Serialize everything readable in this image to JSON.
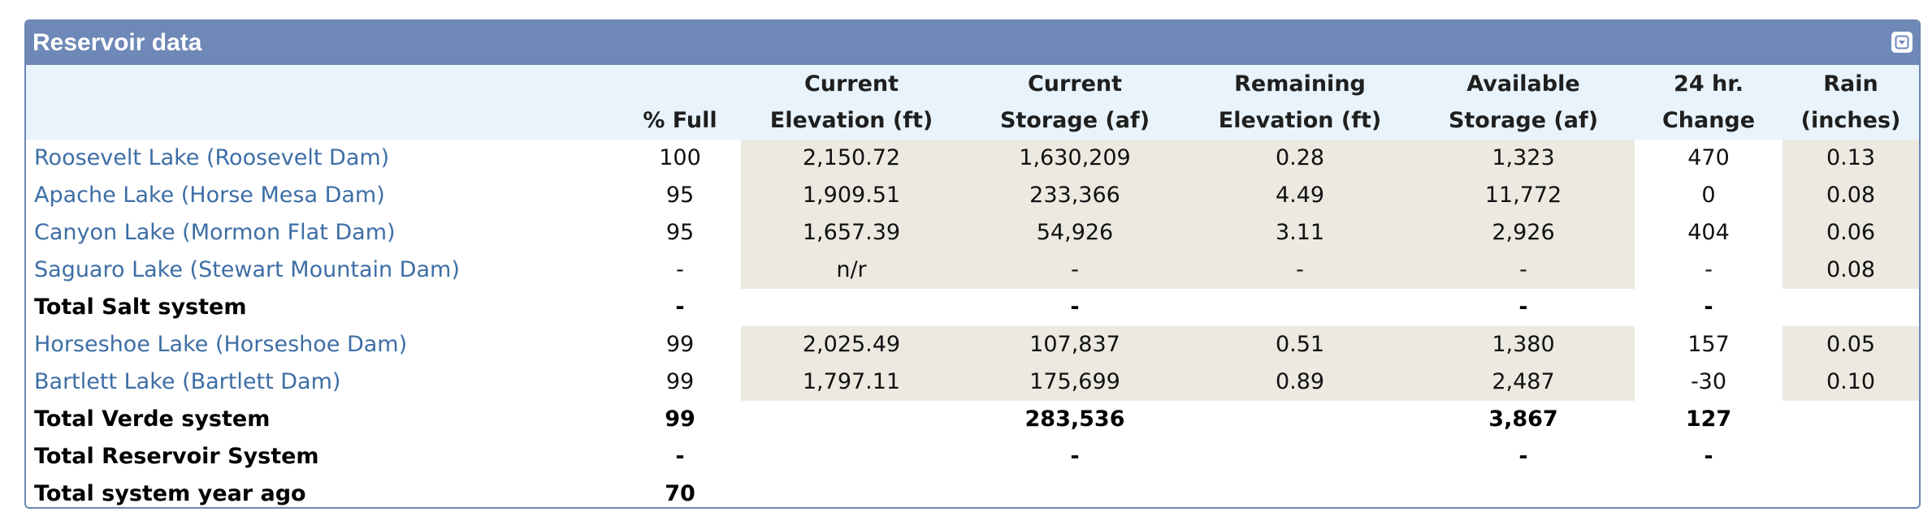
{
  "panel": {
    "title": "Reservoir data"
  },
  "columns": [
    {
      "line1": "",
      "line2": ""
    },
    {
      "line1": "",
      "line2": "% Full"
    },
    {
      "line1": "Current",
      "line2": "Elevation (ft)"
    },
    {
      "line1": "Current",
      "line2": "Storage (af)"
    },
    {
      "line1": "Remaining",
      "line2": "Elevation (ft)"
    },
    {
      "line1": "Available",
      "line2": "Storage (af)"
    },
    {
      "line1": "24 hr.",
      "line2": "Change"
    },
    {
      "line1": "Rain",
      "line2": "(inches)"
    }
  ],
  "rows": [
    {
      "name": "Roosevelt Lake (Roosevelt Dam)",
      "full": "100",
      "elev": "2,150.72",
      "storage": "1,630,209",
      "rem": "0.28",
      "avail": "1,323",
      "change": "470",
      "rain": "0.13"
    },
    {
      "name": "Apache Lake (Horse Mesa Dam)",
      "full": "95",
      "elev": "1,909.51",
      "storage": "233,366",
      "rem": "4.49",
      "avail": "11,772",
      "change": "0",
      "rain": "0.08"
    },
    {
      "name": "Canyon Lake (Mormon Flat Dam)",
      "full": "95",
      "elev": "1,657.39",
      "storage": "54,926",
      "rem": "3.11",
      "avail": "2,926",
      "change": "404",
      "rain": "0.06"
    },
    {
      "name": "Saguaro Lake (Stewart Mountain Dam)",
      "full": "-",
      "elev": "n/r",
      "storage": "-",
      "rem": "-",
      "avail": "-",
      "change": "-",
      "rain": "0.08"
    },
    {
      "name": "Total Salt system",
      "full": "-",
      "elev": "",
      "storage": "-",
      "rem": "",
      "avail": "-",
      "change": "-",
      "rain": ""
    },
    {
      "name": "Horseshoe Lake (Horseshoe Dam)",
      "full": "99",
      "elev": "2,025.49",
      "storage": "107,837",
      "rem": "0.51",
      "avail": "1,380",
      "change": "157",
      "rain": "0.05"
    },
    {
      "name": "Bartlett Lake (Bartlett Dam)",
      "full": "99",
      "elev": "1,797.11",
      "storage": "175,699",
      "rem": "0.89",
      "avail": "2,487",
      "change": "-30",
      "rain": "0.10"
    },
    {
      "name": "Total Verde system",
      "full": "99",
      "elev": "",
      "storage": "283,536",
      "rem": "",
      "avail": "3,867",
      "change": "127",
      "rain": ""
    },
    {
      "name": "Total Reservoir System",
      "full": "-",
      "elev": "",
      "storage": "-",
      "rem": "",
      "avail": "-",
      "change": "-",
      "rain": ""
    },
    {
      "name": "Total system year ago",
      "full": "70",
      "elev": "",
      "storage": "",
      "rem": "",
      "avail": "",
      "change": "",
      "rain": ""
    }
  ],
  "colors": {
    "header_bg": "#6e88b7",
    "column_header_bg": "#e8f3fc",
    "shaded_cell": "#ebe9e0",
    "link_text": "#3d6ea6"
  },
  "icons": {
    "collapse": "chevron-down-icon"
  }
}
